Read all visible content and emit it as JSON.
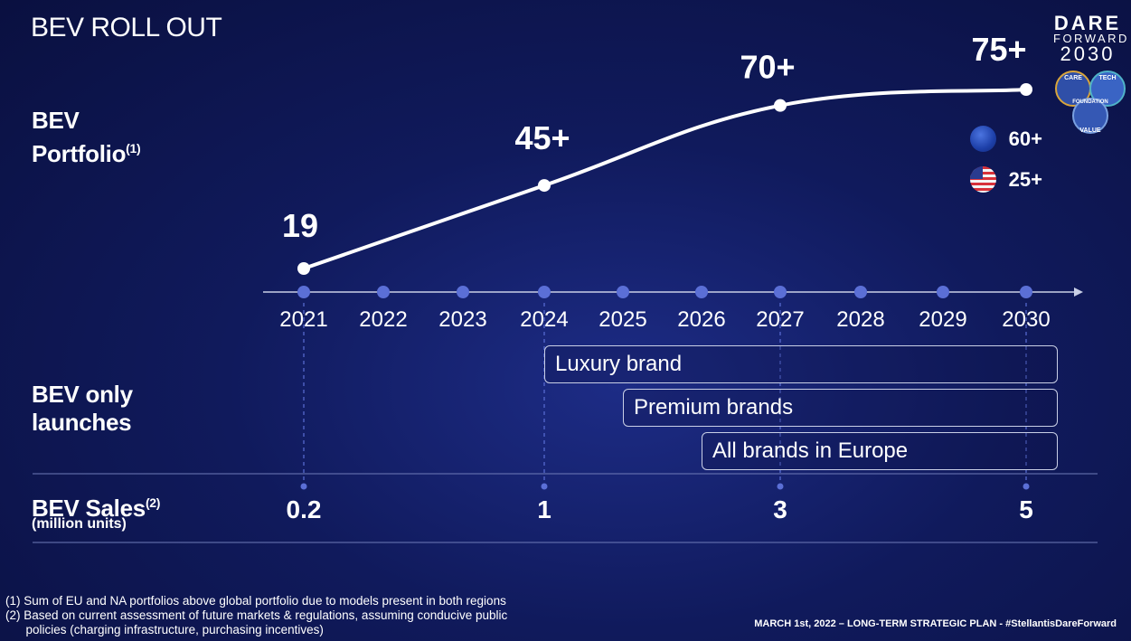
{
  "header": {
    "title": "BEV ROLL OUT"
  },
  "logo": {
    "line1": "DARE",
    "line2": "FORWARD",
    "line3": "2030",
    "badge_labels": [
      "CARE",
      "TECH",
      "FOUNDATION",
      "VALUE"
    ]
  },
  "labels": {
    "portfolio": "BEV",
    "portfolio2": "Portfolio",
    "portfolio_note": "(1)",
    "launches": "BEV only",
    "launches2": "launches",
    "sales": "BEV Sales",
    "sales_note": "(2)",
    "sales_units": "(million units)"
  },
  "regions": [
    {
      "icon": "eu-flag-icon",
      "value": "60+"
    },
    {
      "icon": "us-flag-icon",
      "value": "25+"
    }
  ],
  "launches": [
    {
      "label": "Luxury brand",
      "start_year": 2024
    },
    {
      "label": "Premium brands",
      "start_year": 2025
    },
    {
      "label": "All brands in Europe",
      "start_year": 2026
    }
  ],
  "chart_data": {
    "type": "line",
    "x": [
      2021,
      2022,
      2023,
      2024,
      2025,
      2026,
      2027,
      2028,
      2029,
      2030
    ],
    "tick_labels": [
      "2021",
      "2022",
      "2023",
      "2024",
      "2025",
      "2026",
      "2027",
      "2028",
      "2029",
      "2030"
    ],
    "series": [
      {
        "values": [
          19,
          null,
          null,
          45,
          null,
          null,
          70,
          null,
          null,
          75
        ],
        "data_labels": [
          "19",
          "",
          "",
          "45+",
          "",
          "",
          "70+",
          "",
          "",
          "75+"
        ]
      }
    ],
    "sales": [
      {
        "year": 2021,
        "value": 0.2,
        "label": "0.2"
      },
      {
        "year": 2024,
        "value": 1,
        "label": "1"
      },
      {
        "year": 2027,
        "value": 3,
        "label": "3"
      },
      {
        "year": 2030,
        "value": 5,
        "label": "5"
      }
    ],
    "colors": {
      "axis": "#c9cfe6",
      "dot": "#5b6fd6",
      "line": "#ffffff"
    }
  },
  "footnotes": [
    "(1)  Sum of EU and NA portfolios above global portfolio due to models present in both regions",
    "(2)  Based on current assessment of future markets & regulations, assuming conducive public",
    "      policies (charging infrastructure, purchasing incentives)"
  ],
  "footer": {
    "right": "MARCH 1st, 2022 – LONG-TERM STRATEGIC PLAN - #StellantisDareForward"
  }
}
